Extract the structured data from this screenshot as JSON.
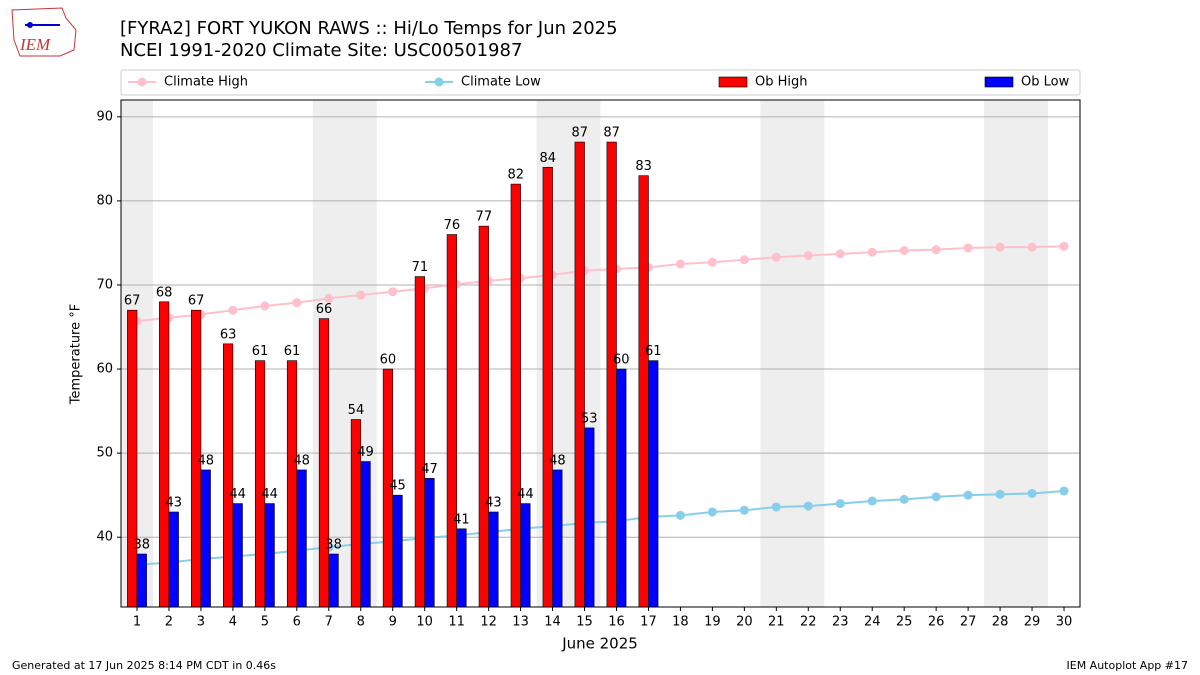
{
  "chart_data": {
    "type": "bar",
    "title": "[FYRA2] FORT YUKON RAWS :: Hi/Lo Temps for Jun 2025",
    "subtitle": "NCEI 1991-2020 Climate Site: USC00501987",
    "logo_text": "IEM",
    "xlabel": "June 2025",
    "ylabel": "Temperature °F",
    "footer_left": "Generated at 17 Jun 2025 8:14 PM CDT in 0.46s",
    "footer_right": "IEM Autoplot App #17",
    "x": [
      1,
      2,
      3,
      4,
      5,
      6,
      7,
      8,
      9,
      10,
      11,
      12,
      13,
      14,
      15,
      16,
      17,
      18,
      19,
      20,
      21,
      22,
      23,
      24,
      25,
      26,
      27,
      28,
      29,
      30
    ],
    "xlim": [
      0.5,
      30.5
    ],
    "xticks": [
      1,
      2,
      3,
      4,
      5,
      6,
      7,
      8,
      9,
      10,
      11,
      12,
      13,
      14,
      15,
      16,
      17,
      18,
      19,
      20,
      21,
      22,
      23,
      24,
      25,
      26,
      27,
      28,
      29,
      30
    ],
    "ylim": [
      31.7,
      92
    ],
    "yticks": [
      40,
      50,
      60,
      70,
      80,
      90
    ],
    "grid": true,
    "shaded_spans": [
      [
        0.5,
        1.5
      ],
      [
        6.5,
        8.5
      ],
      [
        13.5,
        15.5
      ],
      [
        20.5,
        22.5
      ],
      [
        27.5,
        29.5
      ]
    ],
    "shade_color": "#eeeeee",
    "series": [
      {
        "name": "Climate High",
        "type": "line",
        "color": "#ffc0cb",
        "values": [
          65.7,
          66.1,
          66.5,
          67.0,
          67.5,
          67.9,
          68.4,
          68.8,
          69.2,
          69.6,
          70.1,
          70.5,
          70.8,
          71.2,
          71.7,
          71.9,
          72.1,
          72.5,
          72.7,
          73.0,
          73.3,
          73.5,
          73.7,
          73.9,
          74.1,
          74.2,
          74.4,
          74.5,
          74.5,
          74.6
        ]
      },
      {
        "name": "Climate Low",
        "type": "line",
        "color": "#87ceeb",
        "values": [
          36.7,
          37.0,
          37.4,
          37.7,
          38.0,
          38.4,
          38.8,
          39.2,
          39.5,
          39.9,
          40.2,
          40.6,
          41.0,
          41.3,
          41.7,
          41.9,
          42.4,
          42.6,
          43.0,
          43.2,
          43.6,
          43.7,
          44.0,
          44.3,
          44.5,
          44.8,
          45.0,
          45.1,
          45.2,
          45.5
        ]
      },
      {
        "name": "Ob High",
        "type": "bar",
        "color": "#ff0000",
        "values": [
          67,
          68,
          67,
          63,
          61,
          61,
          66,
          54,
          60,
          71,
          76,
          77,
          82,
          84,
          87,
          87,
          83,
          null,
          null,
          null,
          null,
          null,
          null,
          null,
          null,
          null,
          null,
          null,
          null,
          null
        ]
      },
      {
        "name": "Ob Low",
        "type": "bar",
        "color": "#0000ff",
        "values": [
          38,
          43,
          48,
          44,
          44,
          48,
          38,
          49,
          45,
          47,
          41,
          43,
          44,
          48,
          53,
          60,
          61,
          null,
          null,
          null,
          null,
          null,
          null,
          null,
          null,
          null,
          null,
          null,
          null,
          null
        ]
      }
    ],
    "legend": "top"
  }
}
